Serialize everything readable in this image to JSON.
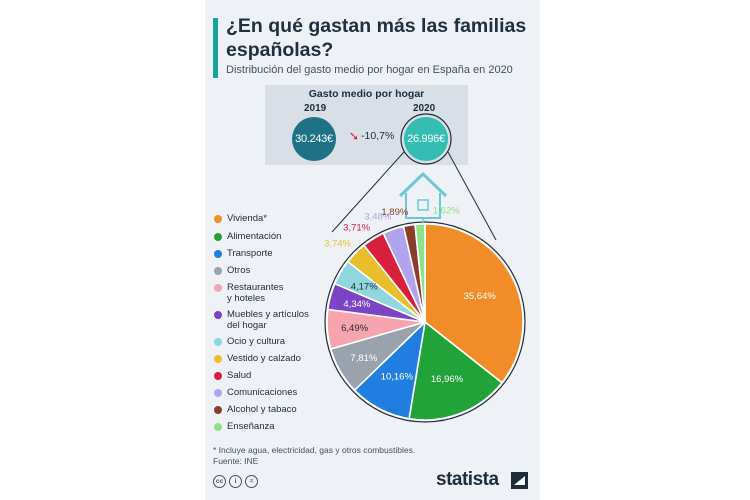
{
  "title": "¿En qué gastan más las familias españolas?",
  "subtitle": "Distribución del gasto medio por hogar en España en 2020",
  "average": {
    "heading": "Gasto medio por hogar",
    "year_2019": "2019",
    "value_2019": "30.243€",
    "year_2020": "2020",
    "value_2020": "26.996€",
    "change": "-10,7%"
  },
  "chart_data": {
    "type": "pie",
    "title": "Distribución del gasto medio por hogar en España en 2020",
    "slices": [
      {
        "label": "Vivienda*",
        "value": 35.64,
        "display": "35,64%",
        "color": "#f28c28"
      },
      {
        "label": "Alimentación",
        "value": 16.96,
        "display": "16,96%",
        "color": "#22a33a"
      },
      {
        "label": "Transporte",
        "value": 10.16,
        "display": "10,16%",
        "color": "#1f7ee0"
      },
      {
        "label": "Otros",
        "value": 7.81,
        "display": "7,81%",
        "color": "#9aa3ad"
      },
      {
        "label": "Restaurantes\ny hoteles",
        "value": 6.49,
        "display": "6,49%",
        "color": "#f7a4ae"
      },
      {
        "label": "Muebles y artículos\ndel hogar",
        "value": 4.34,
        "display": "4,34%",
        "color": "#7c44c4"
      },
      {
        "label": "Ocio y cultura",
        "value": 4.17,
        "display": "4,17%",
        "color": "#8fd6de"
      },
      {
        "label": "Vestido y calzado",
        "value": 3.74,
        "display": "3,74%",
        "color": "#e8bf2a"
      },
      {
        "label": "Salud",
        "value": 3.71,
        "display": "3,71%",
        "color": "#d81f3c"
      },
      {
        "label": "Comunicaciones",
        "value": 3.48,
        "display": "3,48%",
        "color": "#b1a4ec"
      },
      {
        "label": "Alcohol y tabaco",
        "value": 1.89,
        "display": "1,89%",
        "color": "#8a3d2a"
      },
      {
        "label": "Enseñanza",
        "value": 1.62,
        "display": "1,62%",
        "color": "#8fe08a"
      }
    ],
    "legend_position": "left"
  },
  "footnote": {
    "note": "* Incluye agua, electricidad, gas y otros combustibles.",
    "source": "Fuente: INE"
  },
  "brand": "statista",
  "colors": {
    "accent": "#1aa39a",
    "bubble_2019": "#1e7286",
    "bubble_2020": "#33bdb3"
  }
}
